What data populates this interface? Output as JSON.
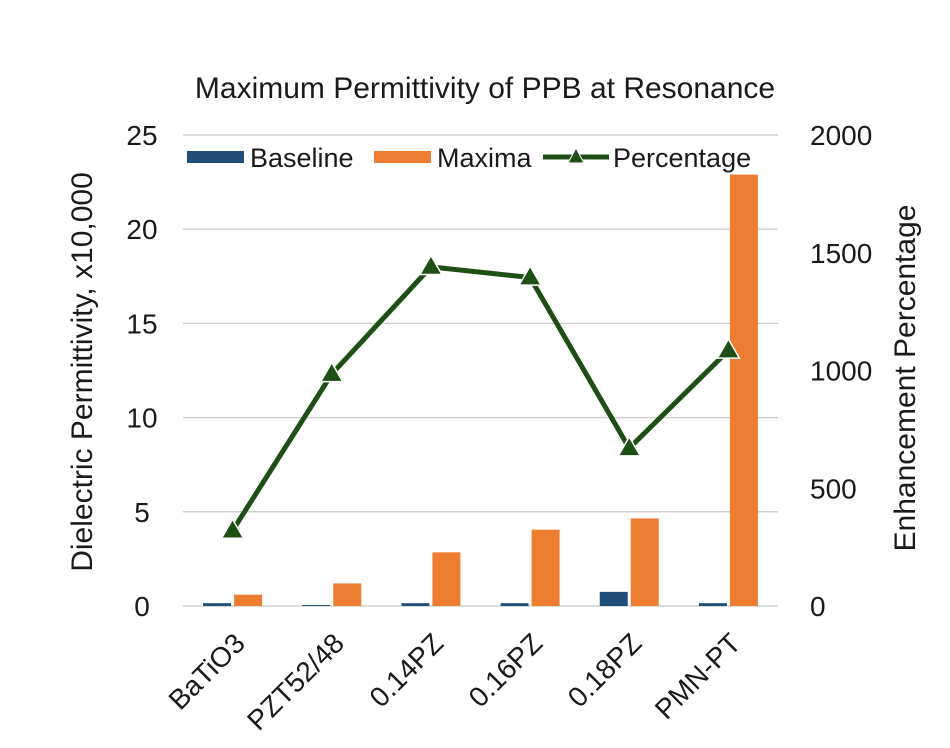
{
  "chart_data": {
    "type": "bar",
    "title": "Maximum Permittivity of PPB at Resonance",
    "categories": [
      "BaTiO3",
      "PZT52/48",
      "0.14PZ",
      "0.16PZ",
      "0.18PZ",
      "PMN-PT"
    ],
    "ylabel": "Dielectric Permittivity, x10,000",
    "y2label": "Enhancement Percentage",
    "ylim": [
      0,
      25
    ],
    "y2lim": [
      0,
      2000
    ],
    "yticks": [
      "0",
      "5",
      "10",
      "15",
      "20",
      "25"
    ],
    "y2ticks": [
      "0",
      "500",
      "1000",
      "1500",
      "2000"
    ],
    "grid": true,
    "legend_position": "top",
    "series": [
      {
        "name": "Baseline",
        "type": "bar",
        "axis": "left",
        "color": "#1f4e79",
        "values": [
          0.15,
          0.05,
          0.15,
          0.15,
          0.75,
          0.15
        ]
      },
      {
        "name": "Maxima",
        "type": "bar",
        "axis": "left",
        "color": "#ed7d31",
        "values": [
          0.6,
          1.2,
          2.85,
          4.05,
          4.65,
          22.9
        ]
      },
      {
        "name": "Percentage",
        "type": "line",
        "axis": "right",
        "color": "#1e5016",
        "marker": "triangle",
        "values": [
          320,
          985,
          1440,
          1395,
          670,
          1085
        ]
      }
    ]
  }
}
